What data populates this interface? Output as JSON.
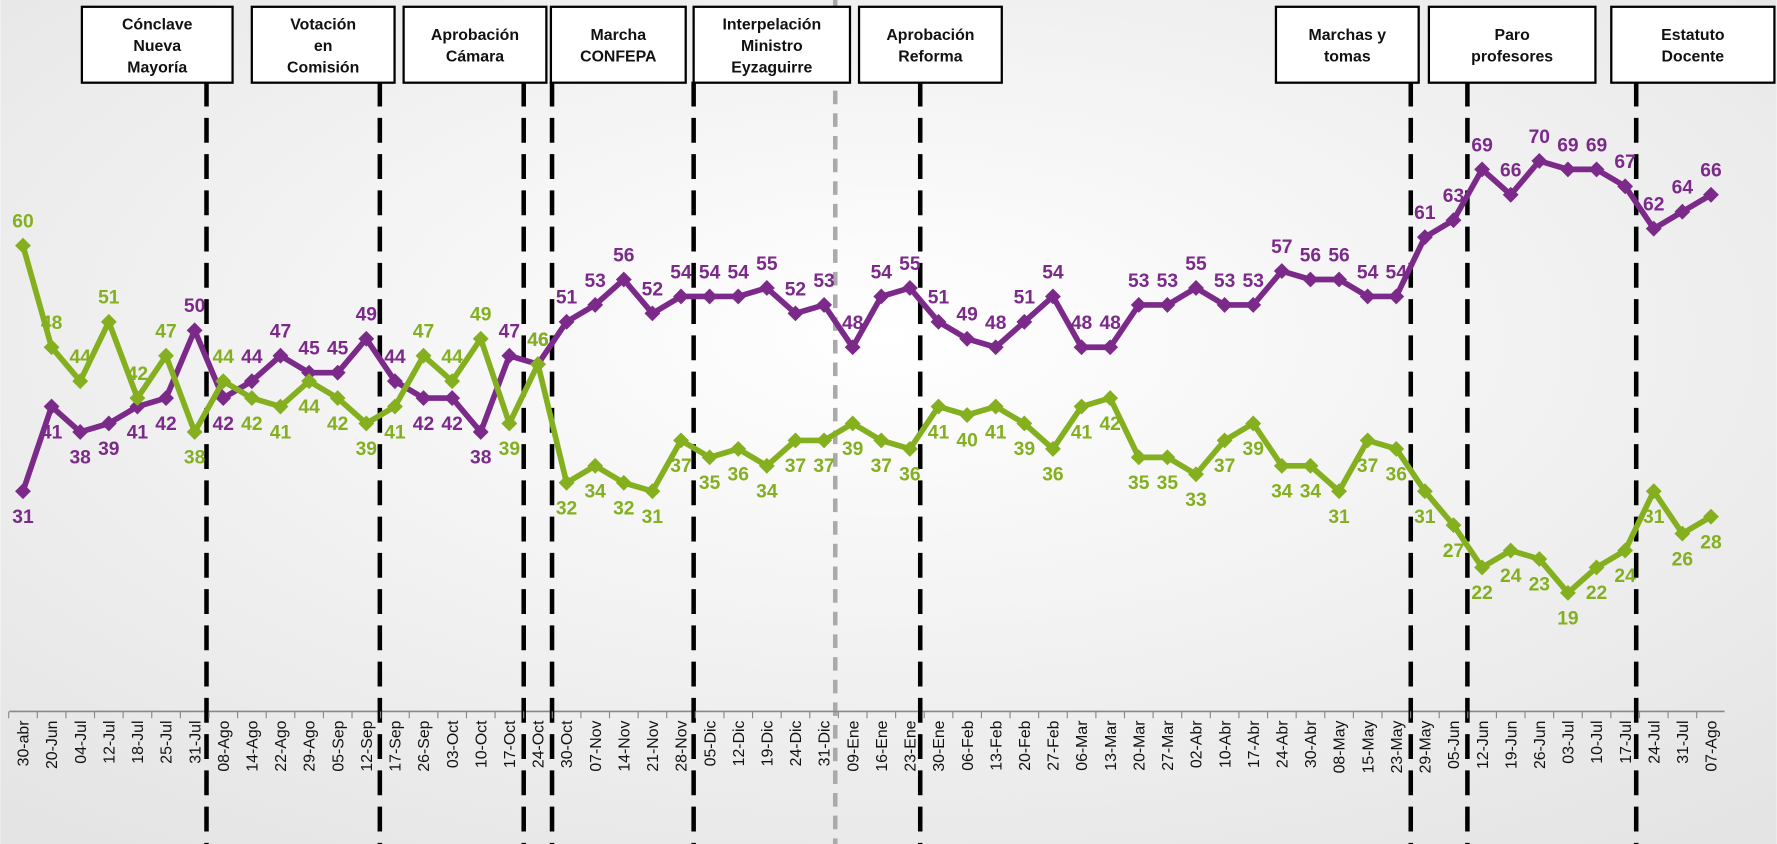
{
  "chart_data": {
    "type": "line",
    "categories": [
      "30-abr",
      "20-Jun",
      "04-Jul",
      "12-Jul",
      "18-Jul",
      "25-Jul",
      "31-Jul",
      "08-Ago",
      "14-Ago",
      "22-Ago",
      "29-Ago",
      "05-Sep",
      "12-Sep",
      "17-Sep",
      "26-Sep",
      "03-Oct",
      "10-Oct",
      "17-Oct",
      "24-Oct",
      "30-Oct",
      "07-Nov",
      "14-Nov",
      "21-Nov",
      "28-Nov",
      "05-Dic",
      "12-Dic",
      "19-Dic",
      "24-Dic",
      "31-Dic",
      "09-Ene",
      "16-Ene",
      "23-Ene",
      "30-Ene",
      "06-Feb",
      "13-Feb",
      "20-Feb",
      "27-Feb",
      "06-Mar",
      "13-Mar",
      "20-Mar",
      "27-Mar",
      "02-Abr",
      "10-Abr",
      "17-Abr",
      "24-Abr",
      "30-Abr",
      "08-May",
      "15-May",
      "23-May",
      "29-May",
      "05-Jun",
      "12-Jun",
      "19-Jun",
      "26-Jun",
      "03-Jul",
      "10-Jul",
      "17-Jul",
      "24-Jul",
      "31-Jul",
      "07-Ago"
    ],
    "series": [
      {
        "color": "#7b2a8a",
        "values": [
          31,
          41,
          38,
          39,
          41,
          42,
          50,
          42,
          44,
          47,
          45,
          45,
          49,
          44,
          42,
          42,
          38,
          47,
          46,
          51,
          53,
          56,
          52,
          54,
          54,
          54,
          55,
          52,
          53,
          48,
          54,
          55,
          51,
          49,
          48,
          51,
          54,
          48,
          48,
          53,
          53,
          55,
          53,
          53,
          57,
          56,
          56,
          54,
          54,
          61,
          63,
          69,
          66,
          70,
          69,
          69,
          67,
          62,
          64,
          66
        ]
      },
      {
        "color": "#84b020",
        "values": [
          60,
          48,
          44,
          51,
          42,
          47,
          38,
          44,
          42,
          41,
          44,
          42,
          39,
          41,
          47,
          44,
          49,
          39,
          46,
          32,
          34,
          32,
          31,
          37,
          35,
          36,
          34,
          37,
          37,
          39,
          37,
          36,
          41,
          40,
          41,
          39,
          36,
          41,
          42,
          35,
          35,
          33,
          37,
          39,
          34,
          34,
          31,
          37,
          36,
          31,
          27,
          22,
          24,
          23,
          19,
          22,
          24,
          31,
          26,
          28
        ]
      }
    ],
    "ylim": [
      5,
      89
    ],
    "events": [
      {
        "lines": [
          "Cónclave",
          "Nueva",
          "Mayoría"
        ]
      },
      {
        "lines": [
          "Votación",
          "en",
          "Comisión"
        ]
      },
      {
        "lines": [
          "Aprobación",
          "Cámara"
        ]
      },
      {
        "lines": [
          "Marcha",
          "CONFEPA"
        ]
      },
      {
        "lines": [
          "Interpelación",
          "Ministro",
          "Eyzaguirre"
        ]
      },
      {
        "lines": [
          "Aprobación",
          "Reforma"
        ]
      },
      {
        "lines": [
          "Marchas y",
          "tomas"
        ]
      },
      {
        "lines": [
          "Paro",
          "profesores"
        ]
      },
      {
        "lines": [
          "Estatuto",
          "Docente"
        ]
      }
    ]
  }
}
